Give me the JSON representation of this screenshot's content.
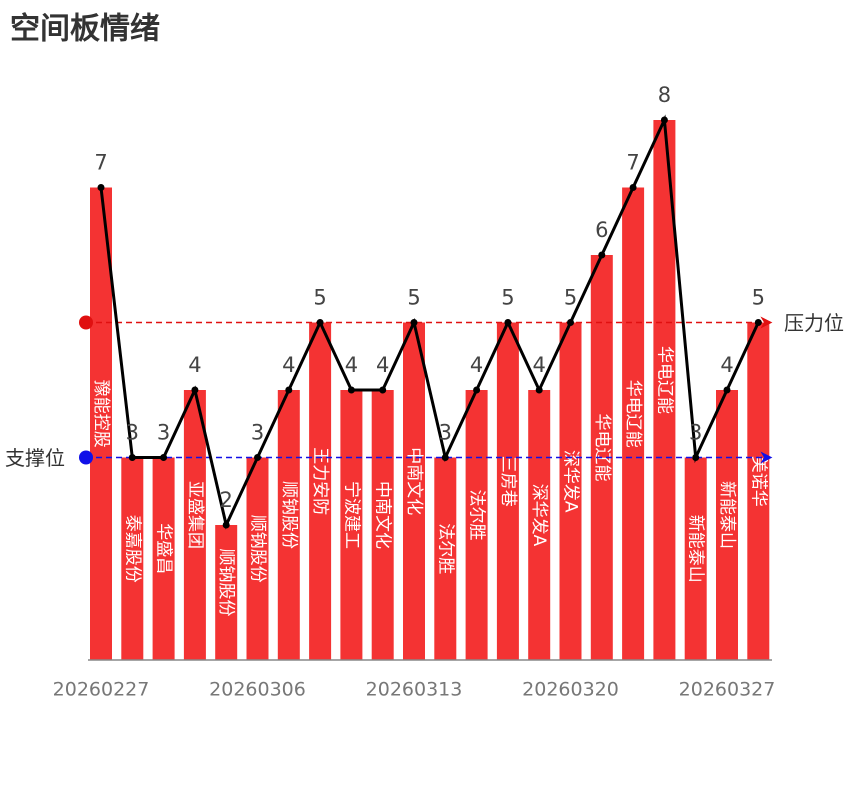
{
  "chart_data": {
    "type": "bar",
    "title": "空间板情绪",
    "categories": [
      "20260227",
      null,
      null,
      null,
      null,
      "20260306",
      null,
      null,
      null,
      null,
      "20260313",
      null,
      null,
      null,
      null,
      "20260320",
      null,
      null,
      null,
      null,
      "20260327",
      null
    ],
    "bar_labels": [
      "豫能控股",
      "泰嘉股份",
      "华盛昌",
      "亚盛集团",
      "顺钠股份",
      "顺钠股份",
      "顺钠股份",
      "王力安防",
      "宁波建工",
      "中南文化",
      "中南文化",
      "法尔胜",
      "法尔胜",
      "三房巷",
      "深华发A",
      "深华发A",
      "华电辽能",
      "华电辽能",
      "华电辽能",
      "新能泰山",
      "新能泰山",
      "美诺华"
    ],
    "values": [
      7,
      3,
      3,
      4,
      2,
      3,
      4,
      5,
      4,
      4,
      5,
      3,
      4,
      5,
      4,
      5,
      6,
      7,
      8,
      3,
      4,
      5
    ],
    "color": "#f43333",
    "line_color": "#000000",
    "ylim": [
      0,
      8
    ],
    "reference_lines": [
      {
        "name": "压力位",
        "value": 5,
        "color": "#e01010",
        "side": "right"
      },
      {
        "name": "支撑位",
        "value": 3,
        "color": "#1010e8",
        "side": "left"
      }
    ]
  }
}
